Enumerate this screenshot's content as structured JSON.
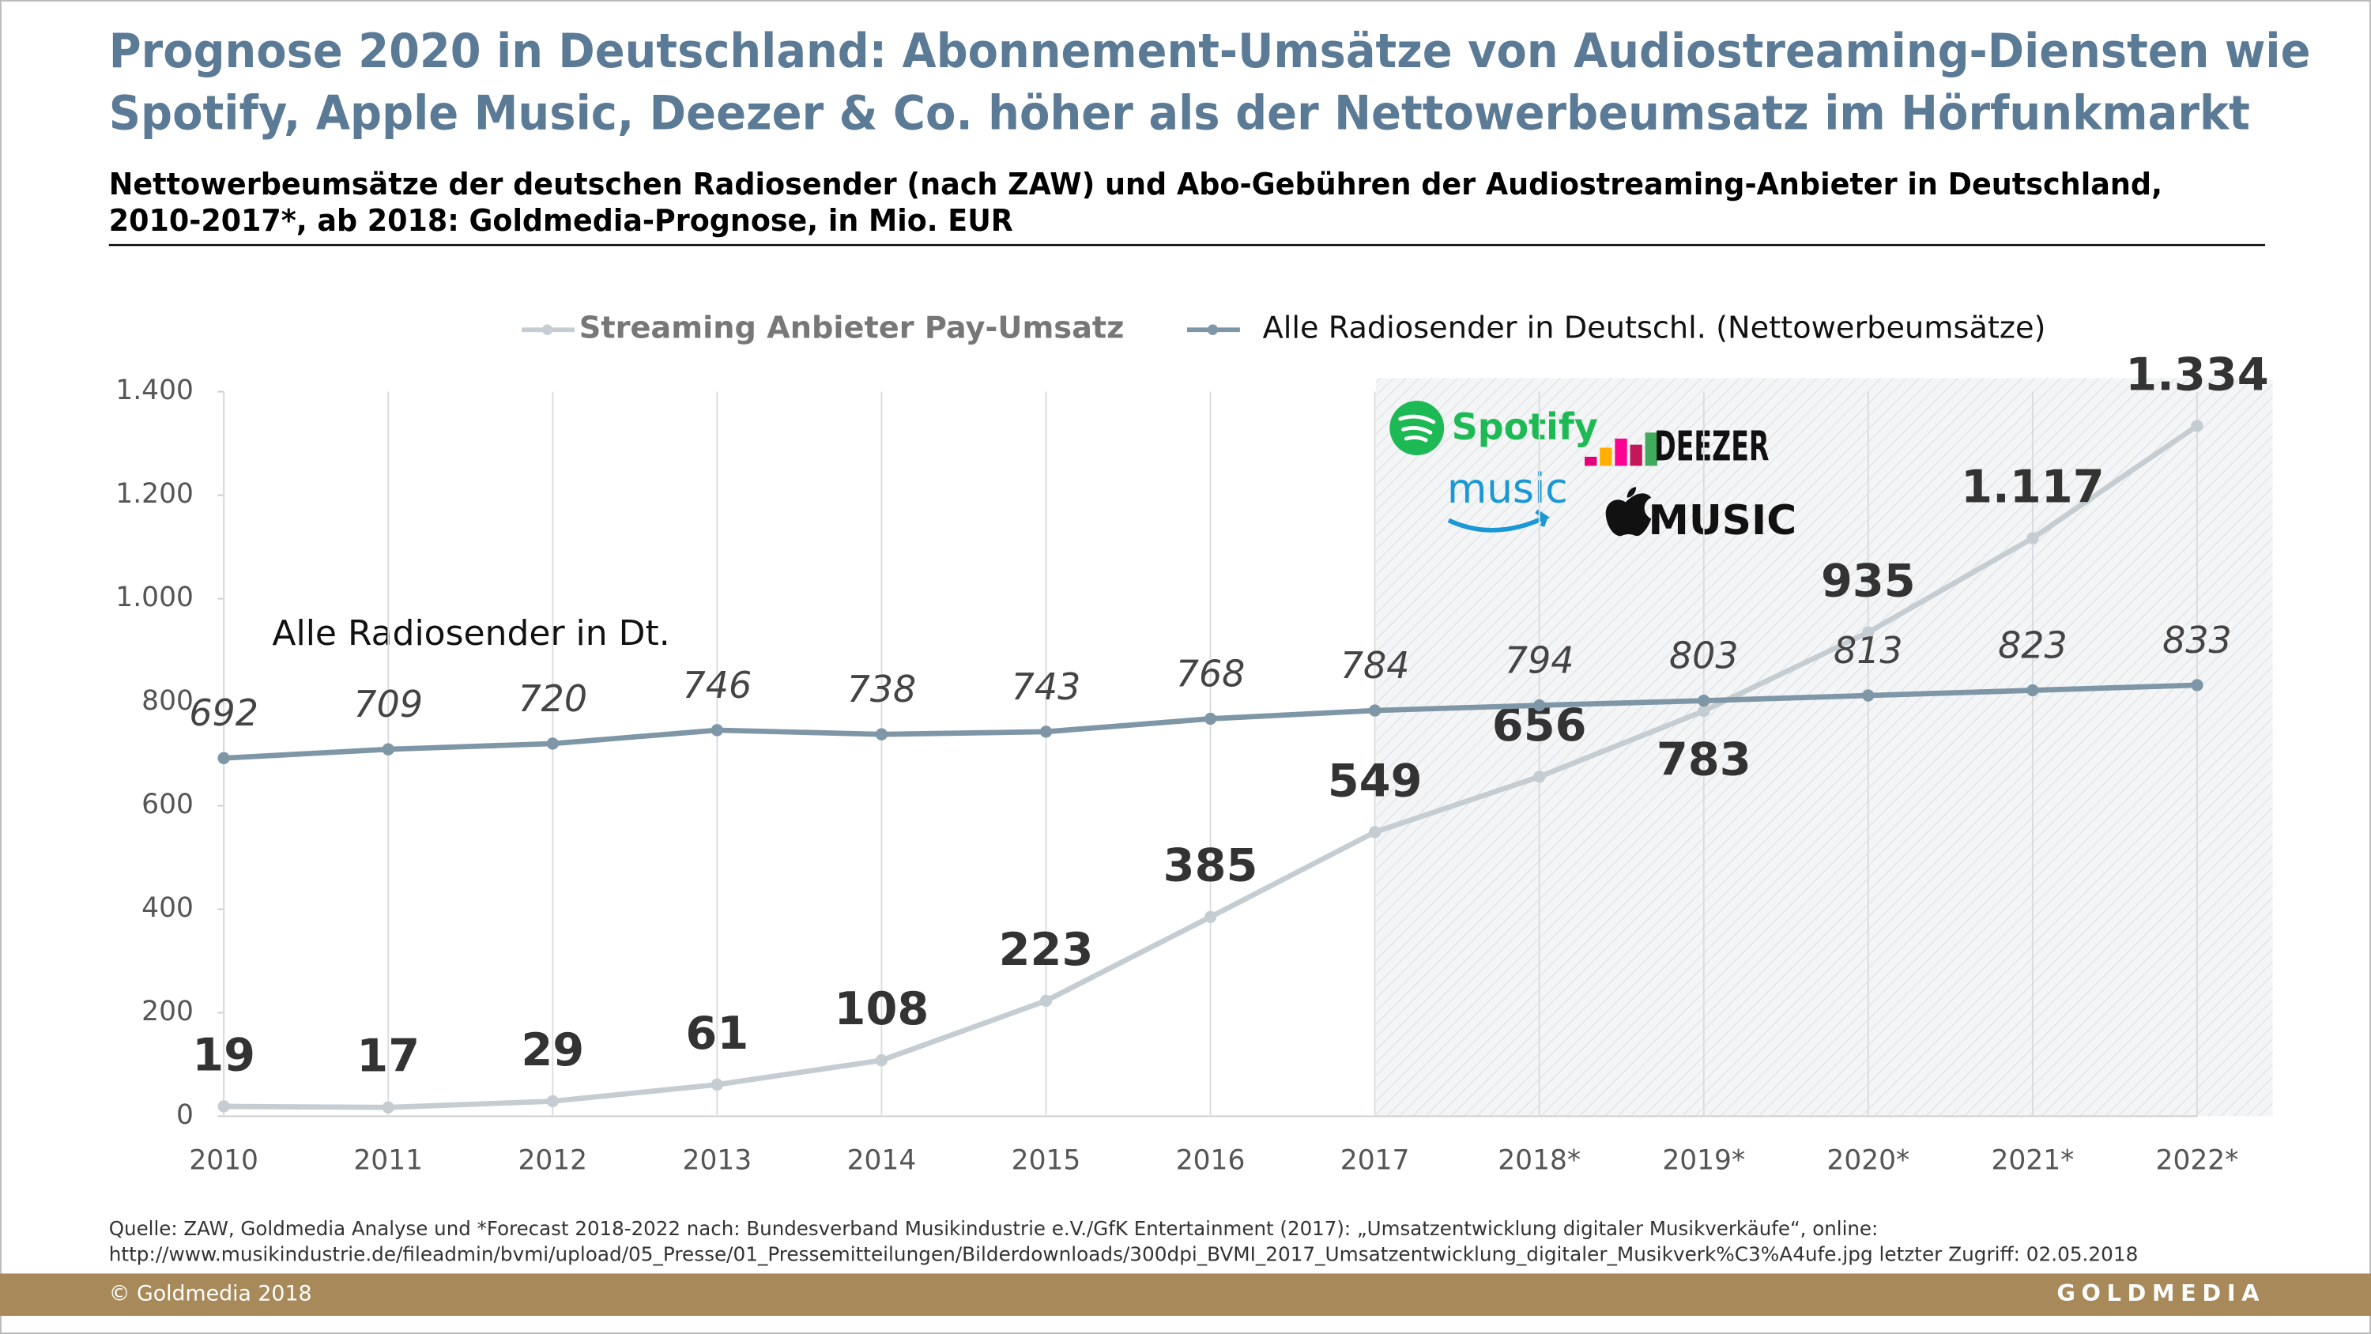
{
  "chart_data": {
    "type": "line",
    "title": [
      "Prognose 2020 in Deutschland: Abonnement-Umsätze von Audiostreaming-Diensten wie",
      "Spotify, Apple Music, Deezer & Co. höher als der Nettowerbeumsatz im Hörfunkmarkt"
    ],
    "subtitle": [
      "Nettowerbeumsätze der deutschen Radiosender (nach ZAW) und Abo-Gebühren der Audiostreaming-Anbieter in Deutschland,",
      "2010-2017*, ab 2018: Goldmedia-Prognose, in Mio. EUR"
    ],
    "categories": [
      "2010",
      "2011",
      "2012",
      "2013",
      "2014",
      "2015",
      "2016",
      "2017",
      "2018*",
      "2019*",
      "2020*",
      "2021*",
      "2022*"
    ],
    "series": [
      {
        "name": "Streaming Anbieter Pay-Umsatz",
        "color": "#c5cdd2",
        "values": [
          19,
          17,
          29,
          61,
          108,
          223,
          385,
          549,
          656,
          783,
          935,
          1117,
          1334
        ],
        "value_labels": [
          "19",
          "17",
          "29",
          "61",
          "108",
          "223",
          "385",
          "549",
          "656",
          "783",
          "935",
          "1.117",
          "1.334"
        ]
      },
      {
        "name": "Alle Radiosender in Deutschl. (Nettowerbeumsätze)",
        "color": "#7f96a6",
        "values": [
          692,
          709,
          720,
          746,
          738,
          743,
          768,
          784,
          794,
          803,
          813,
          823,
          833
        ]
      }
    ],
    "ylim": [
      0,
      1400
    ],
    "yticks": [
      0,
      200,
      400,
      600,
      800,
      {
        "value": 1000,
        "label": "1.000"
      },
      {
        "value": 1200,
        "label": "1.200"
      },
      {
        "value": 1400,
        "label": "1.400"
      }
    ],
    "annotation": "Alle Radiosender in Dt.",
    "logos": [
      "Spotify",
      "DEEZER",
      "music",
      "MUSIC"
    ],
    "source": [
      "Quelle: ZAW, Goldmedia Analyse und *Forecast 2018-2022 nach: Bundesverband Musikindustrie e.V./GfK Entertainment (2017): „Umsatzentwicklung digitaler Musikverkäufe“, online:",
      "http://www.musikindustrie.de/fileadmin/bvmi/upload/05_Presse/01_Pressemitteilungen/Bilderdownloads/300dpi_BVMI_2017_Umsatzentwicklung_digitaler_Musikverk%C3%A4ufe.jpg letzter Zugriff: 02.05.2018"
    ],
    "copyright": "© Goldmedia 2018",
    "brand": "GOLDMEDIA"
  }
}
